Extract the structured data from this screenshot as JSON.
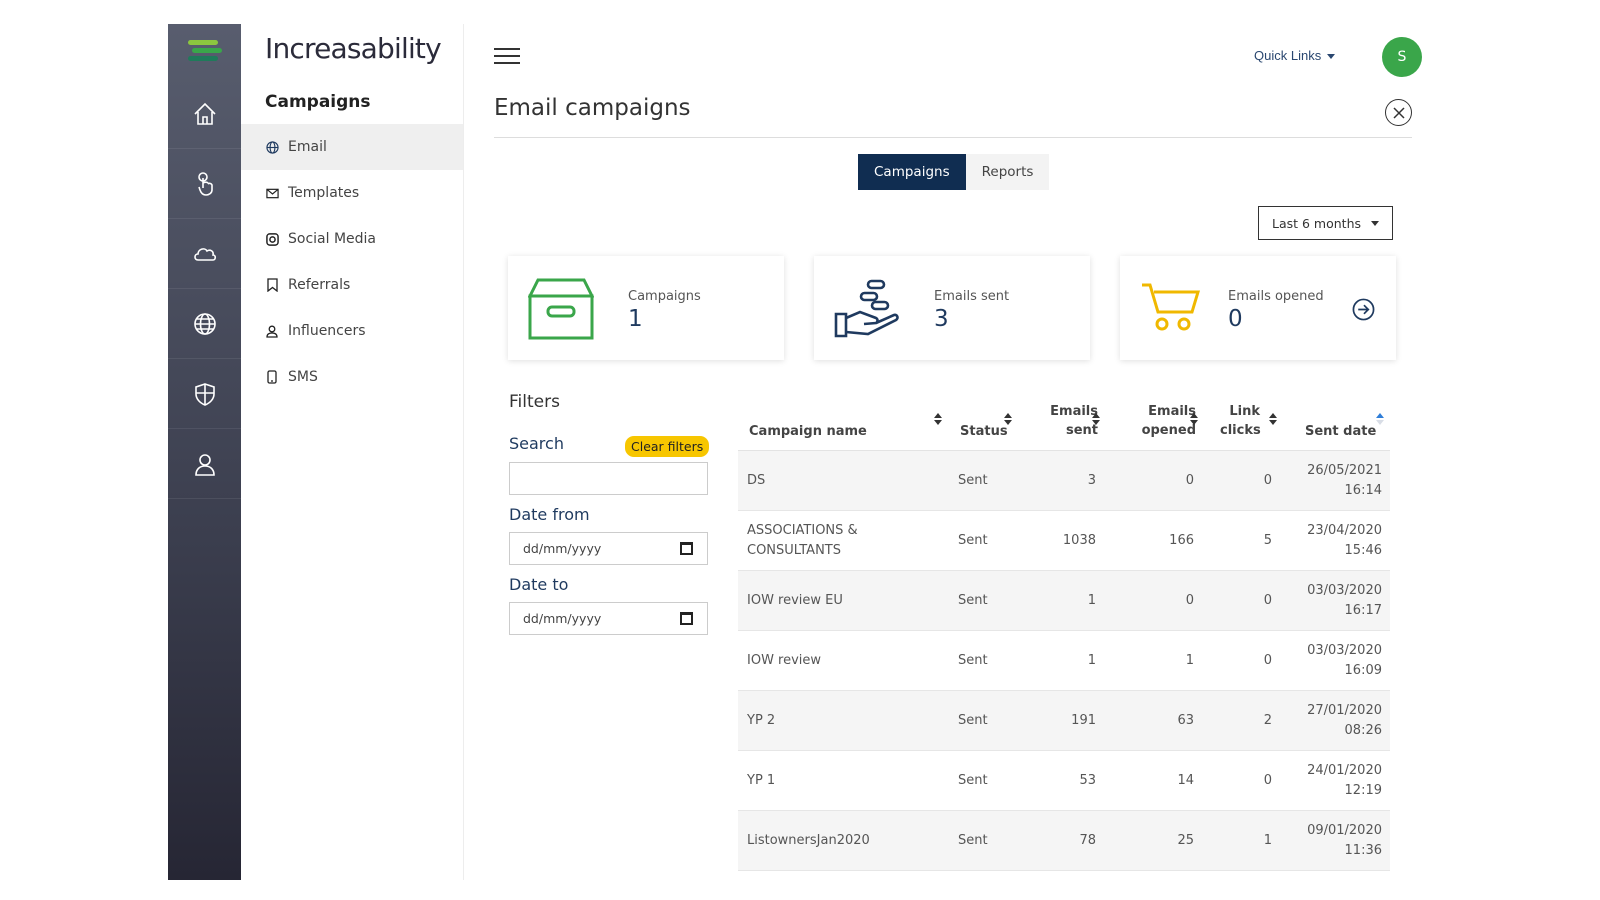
{
  "app": {
    "brand": "Increasability"
  },
  "rail": {
    "items": [
      "home-icon",
      "touch-icon",
      "cloud-icon",
      "globe-icon",
      "shield-icon",
      "user-icon"
    ]
  },
  "subnav": {
    "title": "Campaigns",
    "items": [
      {
        "label": "Email",
        "icon": "globe-icon",
        "active": true
      },
      {
        "label": "Templates",
        "icon": "envelope-icon",
        "active": false
      },
      {
        "label": "Social Media",
        "icon": "instagram-icon",
        "active": false
      },
      {
        "label": "Referrals",
        "icon": "bookmark-icon",
        "active": false
      },
      {
        "label": "Influencers",
        "icon": "person-icon",
        "active": false
      },
      {
        "label": "SMS",
        "icon": "phone-icon",
        "active": false
      }
    ]
  },
  "header": {
    "quick_links": "Quick Links",
    "avatar_initial": "S",
    "avatar_color": "#3aa64a"
  },
  "page": {
    "title": "Email campaigns",
    "tabs": [
      {
        "label": "Campaigns",
        "active": true
      },
      {
        "label": "Reports",
        "active": false
      }
    ],
    "range": "Last 6 months"
  },
  "cards": [
    {
      "label": "Campaigns",
      "value": "1",
      "icon": "archive-box-icon",
      "color": "#3aa64a"
    },
    {
      "label": "Emails sent",
      "value": "3",
      "icon": "hand-coins-icon",
      "color": "#1f3a5f"
    },
    {
      "label": "Emails opened",
      "value": "0",
      "icon": "cart-icon",
      "color": "#f0b800"
    }
  ],
  "filters": {
    "heading": "Filters",
    "search_label": "Search",
    "clear_label": "Clear filters",
    "search_value": "",
    "date_from_label": "Date from",
    "date_from_placeholder": "dd/mm/yyyy",
    "date_to_label": "Date to",
    "date_to_placeholder": "dd/mm/yyyy"
  },
  "table": {
    "headers": {
      "name": "Campaign name",
      "status": "Status",
      "sent": [
        "Emails",
        "sent"
      ],
      "opened": [
        "Emails",
        "opened"
      ],
      "clicks": [
        "Link",
        "clicks"
      ],
      "date": "Sent date"
    },
    "rows": [
      {
        "name": "DS",
        "status": "Sent",
        "sent": "3",
        "opened": "0",
        "clicks": "0",
        "date": "26/05/2021",
        "time": "16:14"
      },
      {
        "name": "ASSOCIATIONS & CONSULTANTS",
        "status": "Sent",
        "sent": "1038",
        "opened": "166",
        "clicks": "5",
        "date": "23/04/2020",
        "time": "15:46"
      },
      {
        "name": "IOW review EU",
        "status": "Sent",
        "sent": "1",
        "opened": "0",
        "clicks": "0",
        "date": "03/03/2020",
        "time": "16:17"
      },
      {
        "name": "IOW review",
        "status": "Sent",
        "sent": "1",
        "opened": "1",
        "clicks": "0",
        "date": "03/03/2020",
        "time": "16:09"
      },
      {
        "name": "YP 2",
        "status": "Sent",
        "sent": "191",
        "opened": "63",
        "clicks": "2",
        "date": "27/01/2020",
        "time": "08:26"
      },
      {
        "name": "YP 1",
        "status": "Sent",
        "sent": "53",
        "opened": "14",
        "clicks": "0",
        "date": "24/01/2020",
        "time": "12:19"
      },
      {
        "name": "ListownersJan2020",
        "status": "Sent",
        "sent": "78",
        "opened": "25",
        "clicks": "1",
        "date": "09/01/2020",
        "time": "11:36"
      }
    ]
  },
  "colors": {
    "nav_active": "#102d51",
    "accent_yellow": "#f7c600",
    "title_blue": "#1f3a5f"
  }
}
